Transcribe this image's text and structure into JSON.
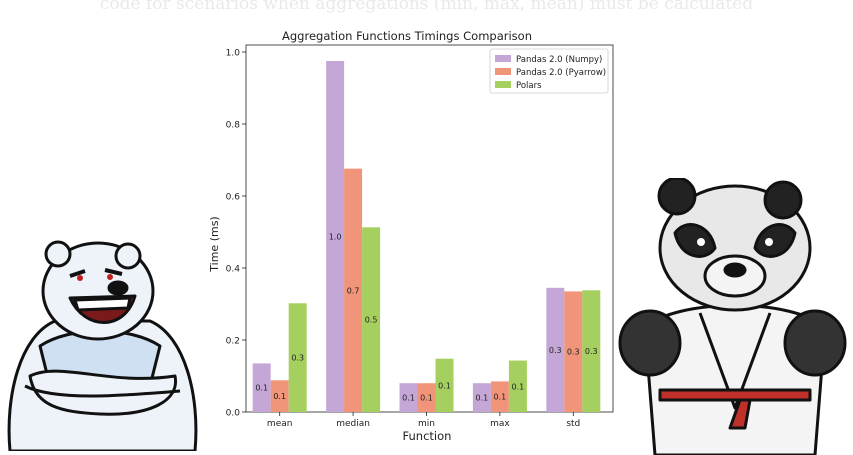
{
  "caption": "code for scenarios when aggregations (min, max, mean) must be calculated",
  "chart_data": {
    "type": "bar",
    "title": "Aggregation Functions Timings Comparison",
    "xlabel": "Function",
    "ylabel": "Time (ms)",
    "ylim": [
      0,
      1.0
    ],
    "yticks": [
      "0.0",
      "0.2",
      "0.4",
      "0.6",
      "0.8",
      "1.0"
    ],
    "categories": [
      "mean",
      "median",
      "min",
      "max",
      "std"
    ],
    "legend_position": "top-right",
    "grid": false,
    "series": [
      {
        "name": "Pandas 2.0 (Numpy)",
        "color": "#c4a7d7",
        "values": [
          0.135,
          0.975,
          0.08,
          0.08,
          0.345
        ],
        "labels": [
          "0.1",
          "1.0",
          "0.1",
          "0.1",
          "0.3"
        ]
      },
      {
        "name": "Pandas 2.0 (Pyarrow)",
        "color": "#f0947a",
        "values": [
          0.088,
          0.676,
          0.08,
          0.085,
          0.335
        ],
        "labels": [
          "0.1",
          "0.7",
          "0.1",
          "0.1",
          "0.3"
        ]
      },
      {
        "name": "Polars",
        "color": "#a5cf5f",
        "values": [
          0.302,
          0.513,
          0.148,
          0.143,
          0.338
        ],
        "labels": [
          "0.3",
          "0.5",
          "0.1",
          "0.1",
          "0.3"
        ]
      }
    ]
  }
}
